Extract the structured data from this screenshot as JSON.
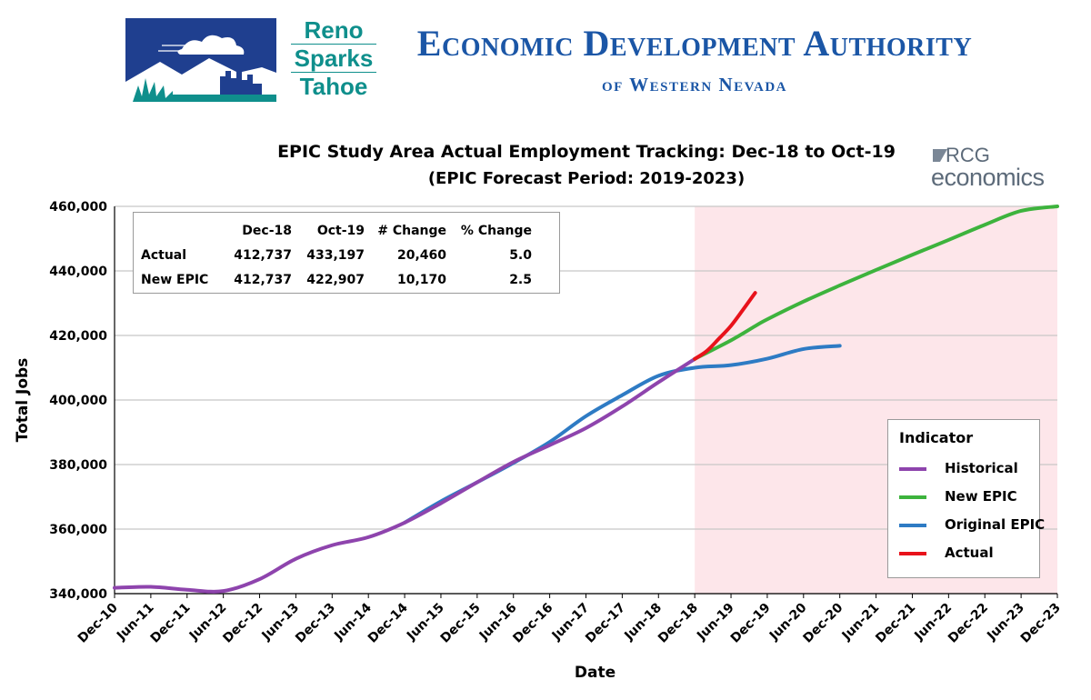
{
  "header": {
    "reno_logo_words": [
      "Reno",
      "Sparks",
      "Tahoe"
    ],
    "eda_title": "Economic Development Authority",
    "eda_subtitle": "of Western Nevada",
    "rcg_logo_top": "RCG",
    "rcg_logo_bottom": "economics"
  },
  "colors": {
    "historical": "#8e44ad",
    "new_epic": "#3db33d",
    "original_epic": "#2e7bc4",
    "actual": "#e8121b",
    "forecast_shade": "#fde6ea",
    "gridline": "#c8c8c8",
    "eda_blue": "#1b56a6",
    "reno_teal": "#0f8f8c",
    "reno_navy": "#1f3f8f"
  },
  "summary_table": {
    "headers": [
      "",
      "Dec-18",
      "Oct-19",
      "# Change",
      "% Change"
    ],
    "rows": [
      [
        "Actual",
        "412,737",
        "433,197",
        "20,460",
        "5.0"
      ],
      [
        "New EPIC",
        "412,737",
        "422,907",
        "10,170",
        "2.5"
      ]
    ]
  },
  "chart_data": {
    "type": "line",
    "title": "EPIC Study Area Actual Employment Tracking: Dec-18 to Oct-19",
    "subtitle": "(EPIC Forecast Period: 2019-2023)",
    "xlabel": "Date",
    "ylabel": "Total Jobs",
    "x_ticks": [
      "Dec-10",
      "Jun-11",
      "Dec-11",
      "Jun-12",
      "Dec-12",
      "Jun-13",
      "Dec-13",
      "Jun-14",
      "Dec-14",
      "Jun-15",
      "Dec-15",
      "Jun-16",
      "Dec-16",
      "Jun-17",
      "Dec-17",
      "Jun-18",
      "Dec-18",
      "Jun-19",
      "Dec-19",
      "Jun-20",
      "Dec-20",
      "Jun-21",
      "Dec-21",
      "Jun-22",
      "Dec-22",
      "Jun-23",
      "Dec-23"
    ],
    "xlim": [
      "2010-12",
      "2023-12"
    ],
    "y_ticks": [
      "340,000",
      "360,000",
      "380,000",
      "400,000",
      "420,000",
      "440,000",
      "460,000"
    ],
    "ylim": [
      340000,
      460000
    ],
    "grid": "horizontal",
    "forecast_period_shaded": [
      "2018-12",
      "2023-12"
    ],
    "legend_title": "Indicator",
    "legend_position": "right",
    "series": [
      {
        "name": "Historical",
        "points": [
          [
            "2010-12",
            341800
          ],
          [
            "2011-06",
            342100
          ],
          [
            "2011-12",
            341200
          ],
          [
            "2012-06",
            340800
          ],
          [
            "2012-12",
            344500
          ],
          [
            "2013-06",
            350800
          ],
          [
            "2013-12",
            355000
          ],
          [
            "2014-06",
            357500
          ],
          [
            "2014-12",
            362000
          ],
          [
            "2015-06",
            368000
          ],
          [
            "2015-12",
            374500
          ],
          [
            "2016-06",
            380800
          ],
          [
            "2016-12",
            386000
          ],
          [
            "2017-06",
            391300
          ],
          [
            "2017-12",
            398000
          ],
          [
            "2018-06",
            405500
          ],
          [
            "2018-12",
            412700
          ]
        ]
      },
      {
        "name": "New EPIC",
        "points": [
          [
            "2018-12",
            412737
          ],
          [
            "2019-06",
            418500
          ],
          [
            "2019-10",
            422907
          ],
          [
            "2019-12",
            425000
          ],
          [
            "2020-06",
            430500
          ],
          [
            "2020-12",
            435500
          ],
          [
            "2021-06",
            440300
          ],
          [
            "2021-12",
            445000
          ],
          [
            "2022-06",
            449600
          ],
          [
            "2022-12",
            454300
          ],
          [
            "2023-06",
            458600
          ],
          [
            "2023-12",
            460000
          ]
        ]
      },
      {
        "name": "Original EPIC",
        "points": [
          [
            "2014-12",
            362000
          ],
          [
            "2015-06",
            368600
          ],
          [
            "2015-12",
            374500
          ],
          [
            "2016-06",
            380500
          ],
          [
            "2016-12",
            387000
          ],
          [
            "2017-06",
            395000
          ],
          [
            "2017-12",
            401500
          ],
          [
            "2018-06",
            407500
          ],
          [
            "2018-12",
            410000
          ],
          [
            "2019-06",
            410800
          ],
          [
            "2019-12",
            412800
          ],
          [
            "2020-06",
            415800
          ],
          [
            "2020-12",
            416800
          ]
        ]
      },
      {
        "name": "Actual",
        "points": [
          [
            "2018-12",
            412737
          ],
          [
            "2019-02",
            415200
          ],
          [
            "2019-04",
            419000
          ],
          [
            "2019-06",
            423000
          ],
          [
            "2019-08",
            428000
          ],
          [
            "2019-10",
            433197
          ]
        ]
      }
    ]
  }
}
